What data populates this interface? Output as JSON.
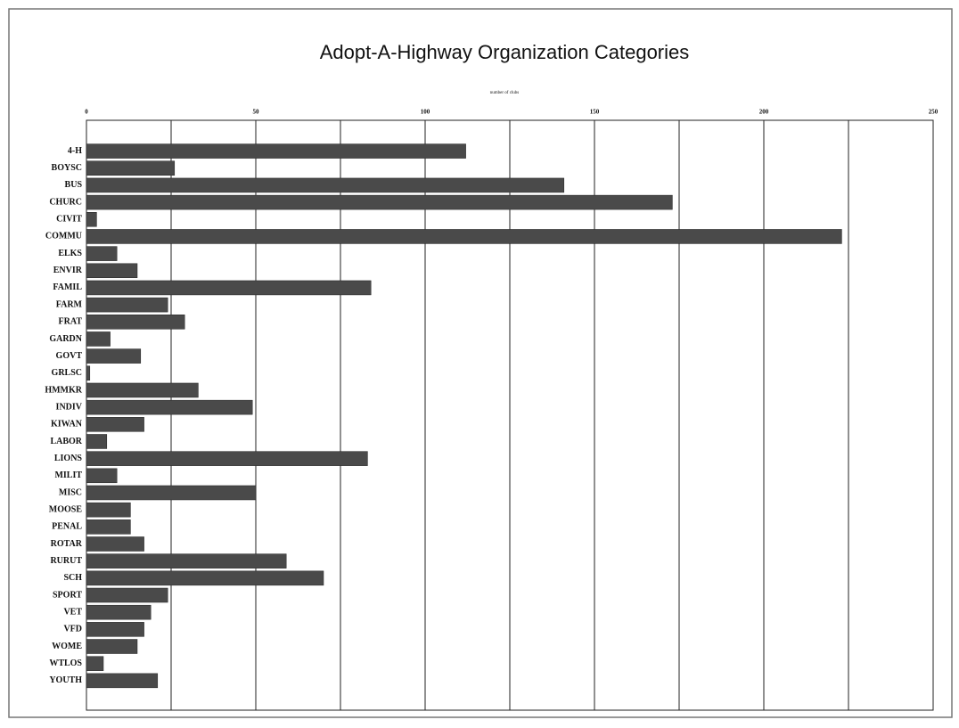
{
  "chart_data": {
    "type": "barh",
    "title": "Adopt-A-Highway Organization Categories",
    "x_label": "number of clubs",
    "categories": [
      "4-H",
      "BOYSC",
      "BUS",
      "CHURC",
      "CIVIT",
      "COMMU",
      "ELKS",
      "ENVIR",
      "FAMIL",
      "FARM",
      "FRAT",
      "GARDN",
      "GOVT",
      "GRLSC",
      "HMMKR",
      "INDIV",
      "KIWAN",
      "LABOR",
      "LIONS",
      "MILIT",
      "MISC",
      "MOOSE",
      "PENAL",
      "ROTAR",
      "RURUT",
      "SCH",
      "SPORT",
      "VET",
      "VFD",
      "WOME",
      "WTLOS",
      "YOUTH"
    ],
    "values": [
      112,
      26,
      141,
      173,
      3,
      223,
      9,
      15,
      84,
      24,
      29,
      7,
      16,
      1,
      33,
      49,
      17,
      6,
      83,
      9,
      50,
      13,
      13,
      17,
      59,
      70,
      24,
      19,
      17,
      15,
      5,
      21
    ],
    "color": "#4a4a4a",
    "xlim": [
      0,
      250
    ],
    "xticks": [
      0,
      50,
      100,
      150,
      200,
      250
    ],
    "grid": true,
    "grid_lines": [
      0,
      25,
      50,
      75,
      100,
      125,
      150,
      175,
      200,
      225,
      250
    ]
  }
}
